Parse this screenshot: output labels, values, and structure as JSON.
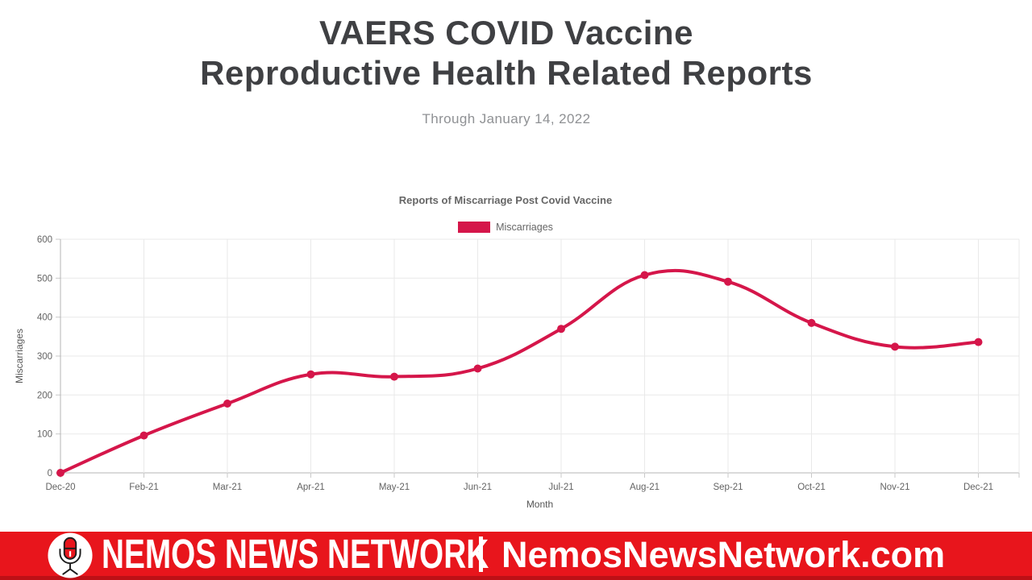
{
  "header": {
    "title_line1": "VAERS COVID Vaccine",
    "title_line2": "Reproductive Health Related Reports",
    "subtitle": "Through January 14, 2022"
  },
  "chart": {
    "title": "Reports of Miscarriage Post Covid Vaccine",
    "legend_label": "Miscarriages"
  },
  "chart_data": {
    "type": "line",
    "title": "Reports of Miscarriage Post Covid Vaccine",
    "categories": [
      "Dec-20",
      "Feb-21",
      "Mar-21",
      "Apr-21",
      "May-21",
      "Jun-21",
      "Jul-21",
      "Aug-21",
      "Sep-21",
      "Oct-21",
      "Nov-21",
      "Dec-21"
    ],
    "series": [
      {
        "name": "Miscarriages",
        "values": [
          0,
          96,
          178,
          253,
          247,
          268,
          370,
          508,
          491,
          385,
          324,
          336
        ]
      }
    ],
    "xlabel": "Month",
    "ylabel": "Miscarriages",
    "ylim": [
      0,
      600
    ],
    "yticks": [
      0,
      100,
      200,
      300,
      400,
      500,
      600
    ],
    "grid": true,
    "legend_position": "top",
    "line_style": "smooth",
    "point_style": "filled-circle"
  },
  "banner": {
    "brand": "NEMOS NEWS NETWORK",
    "url": "NemosNewsNetwork.com",
    "icon": "microphone-icon"
  },
  "colors": {
    "chart_line": "#d5164a",
    "banner_red": "#e8151c",
    "banner_dark": "#bd1016",
    "title_text": "#3f4043",
    "grid": "#e9e9e9",
    "axis": "#b4b4b4"
  }
}
